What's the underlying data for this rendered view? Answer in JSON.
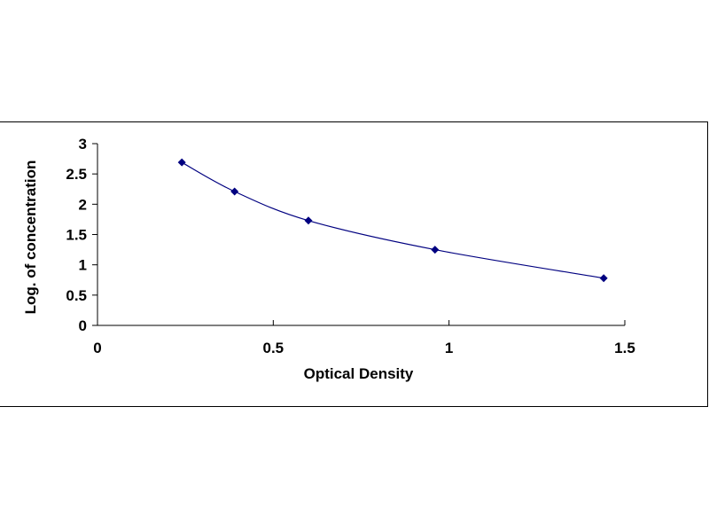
{
  "chart_data": {
    "type": "scatter",
    "xlabel": "Optical Density",
    "ylabel": "Log. of concentration",
    "xlim": [
      0,
      1.5
    ],
    "ylim": [
      0,
      3
    ],
    "x_ticks": [
      "0",
      "0.5",
      "1",
      "1.5"
    ],
    "y_ticks": [
      "0",
      "0.5",
      "1",
      "1.5",
      "2",
      "2.5",
      "3"
    ],
    "grid": false,
    "series": [
      {
        "points": [
          {
            "x": 0.24,
            "y": 2.69
          },
          {
            "x": 0.39,
            "y": 2.21
          },
          {
            "x": 0.6,
            "y": 1.73
          },
          {
            "x": 0.96,
            "y": 1.25
          },
          {
            "x": 1.44,
            "y": 0.78
          }
        ],
        "marker": "diamond",
        "color": "#000080",
        "trendline": "smooth"
      }
    ]
  }
}
